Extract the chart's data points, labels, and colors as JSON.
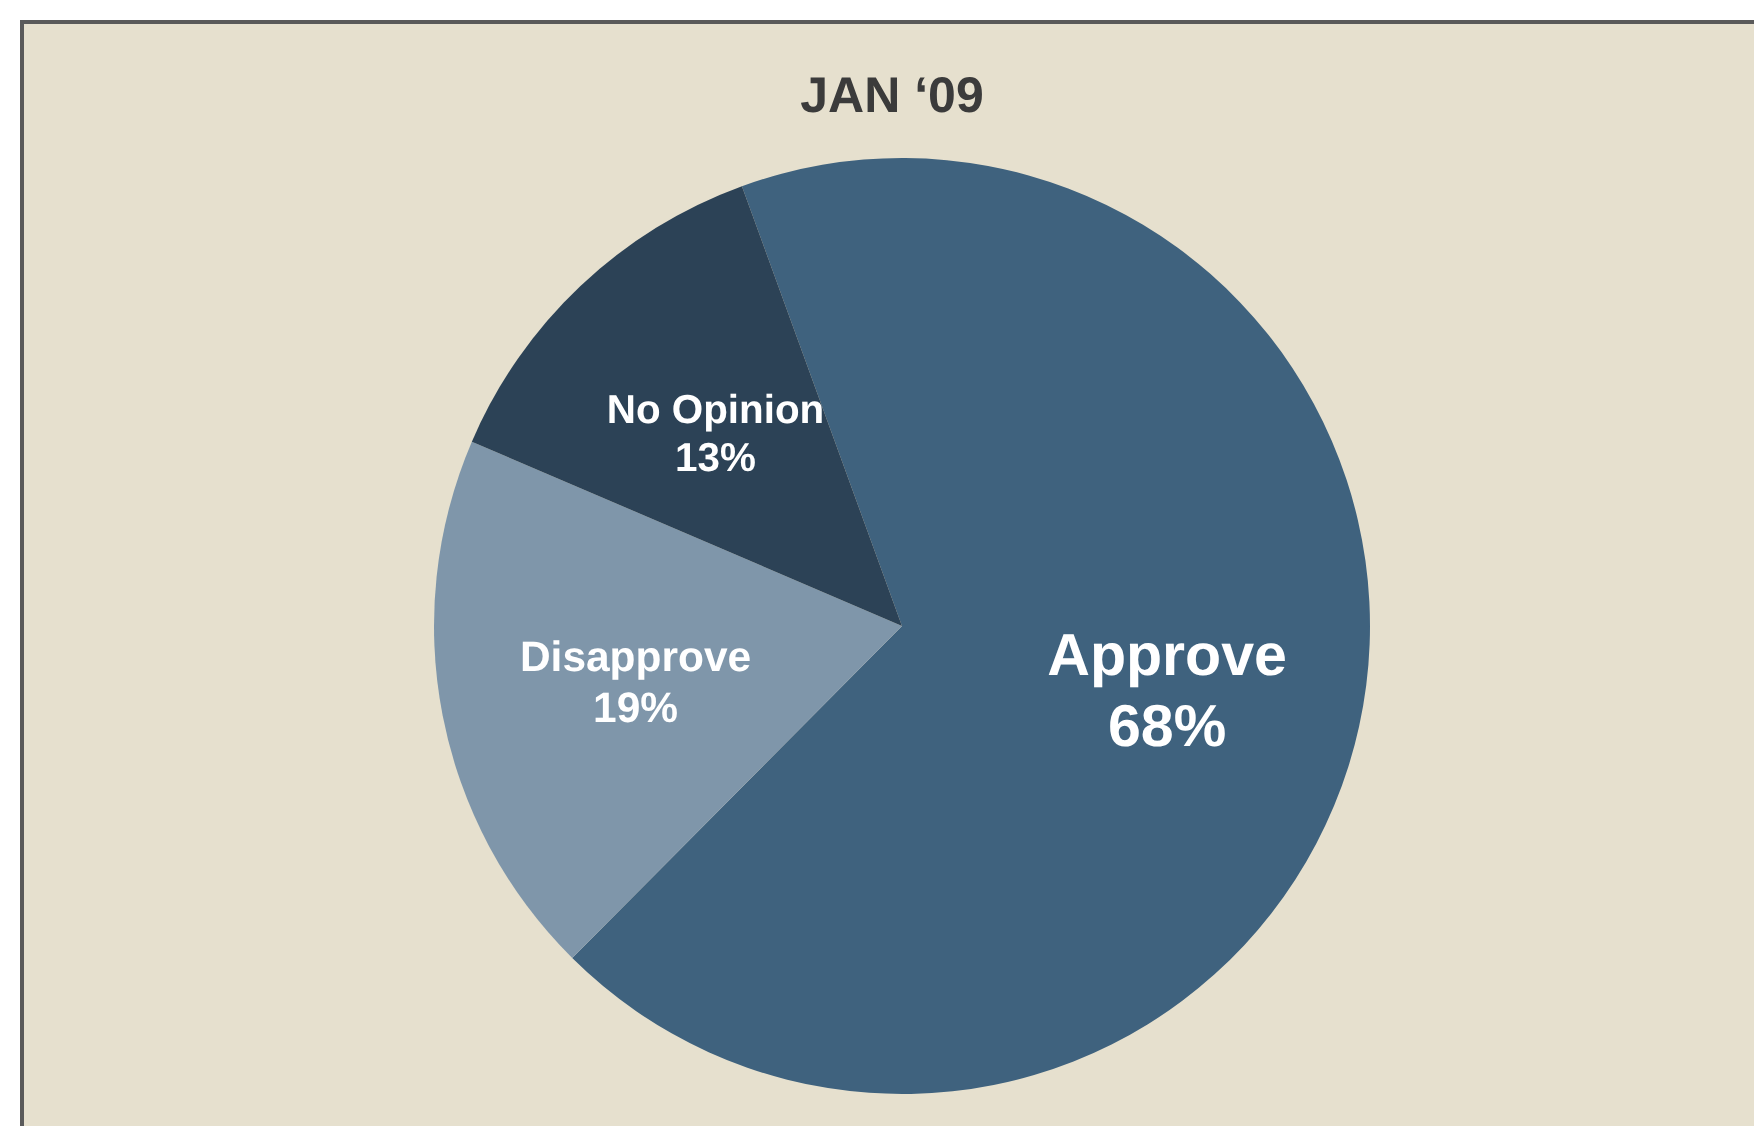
{
  "chart_data": {
    "type": "pie",
    "title": "JAN ‘09",
    "categories": [
      "Approve",
      "Disapprove",
      "No Opinion"
    ],
    "values": [
      68,
      19,
      13
    ],
    "colors": [
      "#3f627e",
      "#7f96aa",
      "#2c4256"
    ],
    "value_labels": [
      "68%",
      "19%",
      "13%"
    ],
    "legend": false
  }
}
